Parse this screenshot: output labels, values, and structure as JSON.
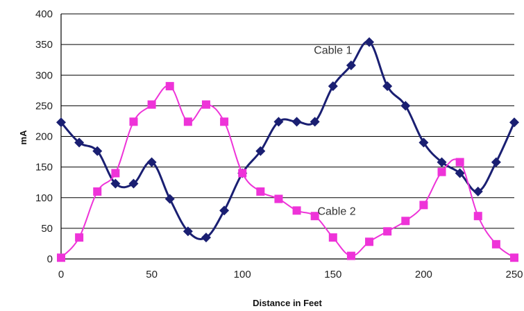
{
  "chart_data": {
    "type": "line",
    "title": "",
    "xlabel": "Distance in Feet",
    "ylabel": "mA",
    "xlim": [
      0,
      250
    ],
    "ylim": [
      0,
      400
    ],
    "xticks": [
      "0",
      "50",
      "100",
      "150",
      "200",
      "250"
    ],
    "yticks": [
      "0",
      "50",
      "100",
      "150",
      "200",
      "250",
      "300",
      "350",
      "400"
    ],
    "grid": "horizontal",
    "legend": "none",
    "series": [
      {
        "name": "Cable 1",
        "color": "#1a1f72",
        "marker": "diamond",
        "x": [
          0,
          10,
          20,
          30,
          40,
          50,
          60,
          70,
          80,
          90,
          100,
          110,
          120,
          130,
          140,
          150,
          160,
          170,
          180,
          190,
          200,
          210,
          220,
          230,
          240,
          250
        ],
        "y": [
          223,
          190,
          176,
          123,
          123,
          158,
          98,
          45,
          35,
          79,
          140,
          176,
          224,
          224,
          224,
          282,
          316,
          354,
          282,
          250,
          190,
          158,
          140,
          110,
          158,
          223
        ]
      },
      {
        "name": "Cable 2",
        "color": "#ee33d8",
        "marker": "square",
        "x": [
          0,
          10,
          20,
          30,
          40,
          50,
          60,
          70,
          80,
          90,
          100,
          110,
          120,
          130,
          140,
          150,
          160,
          170,
          180,
          190,
          200,
          210,
          220,
          230,
          240,
          250
        ],
        "y": [
          2,
          35,
          110,
          140,
          224,
          252,
          282,
          224,
          252,
          224,
          140,
          110,
          98,
          79,
          70,
          35,
          5,
          28,
          45,
          62,
          88,
          142,
          158,
          70,
          24,
          2
        ]
      }
    ],
    "annotations": [
      {
        "text": "Cable 1",
        "x": 150,
        "y": 335
      },
      {
        "text": "Cable 2",
        "x": 152,
        "y": 72
      }
    ]
  }
}
